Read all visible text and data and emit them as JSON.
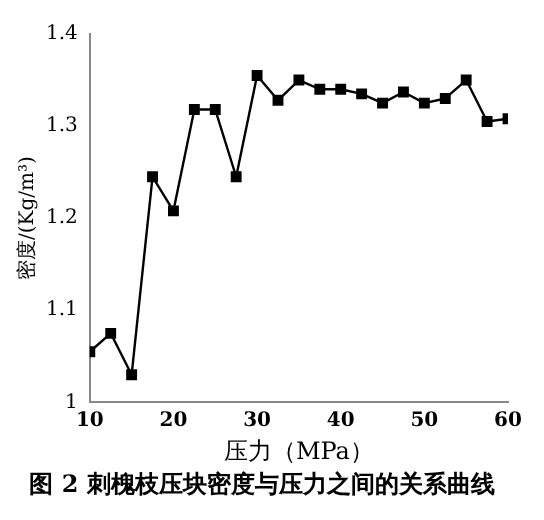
{
  "chart_data": {
    "type": "line",
    "title": "图 2 刺槐枝压块密度与压力之间的关系曲线",
    "xlabel": "压力（MPa）",
    "ylabel": "密度/(Kg/m³)",
    "x": [
      10,
      12.5,
      15,
      17.5,
      20,
      22.5,
      25,
      27.5,
      30,
      32.5,
      35,
      37.5,
      40,
      42.5,
      45,
      47.5,
      50,
      52.5,
      55,
      57.5,
      60
    ],
    "series": [
      {
        "color": "#000000",
        "values": [
          1.055,
          1.075,
          1.03,
          1.245,
          1.208,
          1.318,
          1.318,
          1.245,
          1.355,
          1.328,
          1.35,
          1.34,
          1.34,
          1.335,
          1.325,
          1.337,
          1.325,
          1.33,
          1.35,
          1.305,
          1.308
        ]
      }
    ],
    "xlim": [
      10,
      60
    ],
    "xticks": [
      10,
      20,
      30,
      40,
      50,
      60
    ],
    "ylim": [
      1,
      1.4
    ],
    "yticks": [
      1,
      1.1,
      1.2,
      1.3,
      1.4
    ],
    "grid": false,
    "legend": false,
    "marker": "square",
    "line_style": "solid"
  }
}
